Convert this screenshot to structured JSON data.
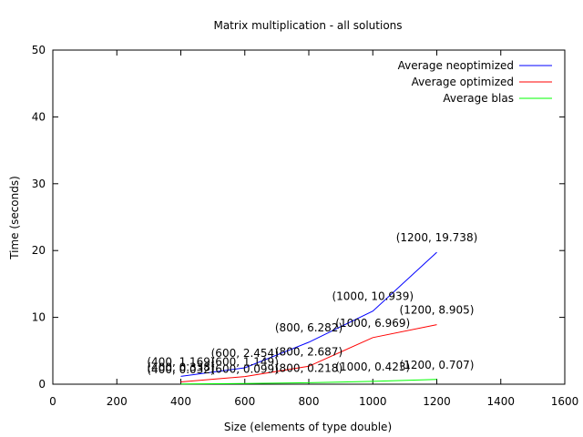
{
  "chart_data": {
    "type": "line",
    "title": "Matrix multiplication - all solutions",
    "xlabel": "Size (elements of type double)",
    "ylabel": "Time (seconds)",
    "xlim": [
      0,
      1600
    ],
    "ylim": [
      0,
      50
    ],
    "xticks": [
      0,
      200,
      400,
      600,
      800,
      1000,
      1200,
      1400,
      1600
    ],
    "yticks": [
      0,
      10,
      20,
      30,
      40,
      50
    ],
    "grid": false,
    "legend_position": "top-right",
    "series": [
      {
        "name": "Average neoptimized",
        "color": "#0000ff",
        "x": [
          400,
          600,
          800,
          1000,
          1200
        ],
        "y": [
          1.169,
          2.454,
          6.282,
          10.939,
          19.738
        ],
        "labels": [
          "(400, 1.169)",
          "(600, 2.454)",
          "(800, 6.282)",
          "(1000, 10.939)",
          "(1200, 19.738)"
        ]
      },
      {
        "name": "Average optimized",
        "color": "#ff0000",
        "x": [
          400,
          600,
          800,
          1000,
          1200
        ],
        "y": [
          0.338,
          1.149,
          2.687,
          6.969,
          8.905
        ],
        "labels": [
          "(400, 0.338)",
          "(600, 1.149)",
          "(800, 2.687)",
          "(1000, 6.969)",
          "(1200, 8.905)"
        ]
      },
      {
        "name": "Average blas",
        "color": "#00ff00",
        "x": [
          400,
          600,
          800,
          1000,
          1200
        ],
        "y": [
          0.032,
          0.099,
          0.218,
          0.423,
          0.707
        ],
        "labels": [
          "(400, 0.032)",
          "(600, 0.099)",
          "(800, 0.218)",
          "(1000, 0.423)",
          "(1200, 0.707)"
        ]
      }
    ]
  }
}
